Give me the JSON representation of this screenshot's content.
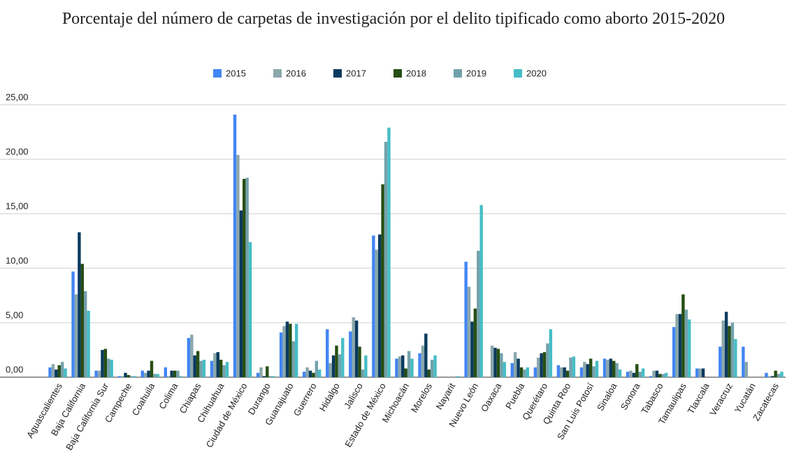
{
  "chart_data": {
    "type": "bar",
    "title": "Porcentaje del número de carpetas de investigación por el delito tipificado como aborto 2015-2020",
    "categories": [
      "Aguascalientes",
      "Baja California",
      "Baja California Sur",
      "Campeche",
      "Coahuila",
      "Colima",
      "Chiapas",
      "Chihuahua",
      "Ciudad de México",
      "Durango",
      "Guanajuato",
      "Guerrero",
      "Hidalgo",
      "Jalisco",
      "Estado de México",
      "Michoacán",
      "Morelos",
      "Nayarit",
      "Nuevo León",
      "Oaxaca",
      "Puebla",
      "Querétaro",
      "Quinta Roo",
      "San Luis Potosí",
      "Sinaloa",
      "Sonora",
      "Tabasco",
      "Tamaulipas",
      "Tlaxcala",
      "Veracruz",
      "Yucatán",
      "Zacatecas"
    ],
    "series": [
      {
        "name": "2015",
        "color": "#4285f4",
        "values": [
          0.9,
          9.7,
          0.6,
          0.1,
          0.6,
          0.9,
          3.6,
          1.5,
          24.1,
          0.4,
          4.1,
          0.5,
          4.4,
          4.2,
          13.0,
          1.7,
          2.2,
          0,
          10.6,
          0,
          1.3,
          0.9,
          1.1,
          0.9,
          1.7,
          0.5,
          0.1,
          4.6,
          0.8,
          2.8,
          2.8,
          0.4
        ]
      },
      {
        "name": "2016",
        "color": "#8aa7ab",
        "values": [
          1.2,
          7.6,
          0.6,
          0.1,
          0.4,
          0.1,
          3.9,
          2.2,
          20.4,
          0.9,
          4.7,
          0.9,
          1.3,
          5.5,
          11.7,
          1.9,
          2.9,
          0,
          8.3,
          2.9,
          2.3,
          1.8,
          0.9,
          1.4,
          1.6,
          0.6,
          0.6,
          5.8,
          0.8,
          5.2,
          1.4,
          0.1
        ]
      },
      {
        "name": "2017",
        "color": "#0b3a5e",
        "values": [
          0.7,
          13.3,
          2.5,
          0.4,
          0.6,
          0.6,
          2.0,
          2.3,
          15.3,
          0.1,
          5.1,
          0.6,
          2.0,
          5.2,
          13.1,
          2.0,
          4.0,
          0,
          5.1,
          2.7,
          1.7,
          2.2,
          0.9,
          1.2,
          1.7,
          0.4,
          0.6,
          5.8,
          0.8,
          6.0,
          0,
          0.1
        ]
      },
      {
        "name": "2018",
        "color": "#274e13",
        "values": [
          1.1,
          10.4,
          2.6,
          0.2,
          1.5,
          0.6,
          2.4,
          1.6,
          18.2,
          1.0,
          4.9,
          0.4,
          2.9,
          2.8,
          17.7,
          0.8,
          0.7,
          0,
          6.3,
          2.6,
          0.9,
          2.3,
          0.6,
          1.7,
          1.5,
          1.2,
          0.3,
          7.6,
          0,
          4.7,
          0,
          0.6
        ]
      },
      {
        "name": "2019",
        "color": "#73a1ab",
        "values": [
          1.4,
          7.9,
          1.7,
          0.1,
          0.3,
          0.6,
          1.5,
          1.1,
          18.3,
          0.1,
          3.3,
          1.5,
          2.1,
          0.7,
          21.6,
          2.4,
          1.6,
          0,
          11.6,
          2.2,
          0.7,
          3.1,
          1.8,
          1.0,
          1.3,
          0.5,
          0.3,
          6.2,
          0,
          5.0,
          0,
          0.3
        ]
      },
      {
        "name": "2020",
        "color": "#46bdc6",
        "values": [
          0.8,
          6.1,
          1.6,
          0.1,
          0.3,
          0.1,
          1.6,
          1.4,
          12.4,
          0.1,
          4.9,
          0.7,
          3.6,
          2.0,
          22.9,
          1.7,
          2.0,
          0.1,
          15.8,
          1.4,
          0.9,
          4.4,
          1.9,
          1.5,
          0.7,
          0.8,
          0.4,
          5.3,
          0,
          3.5,
          0,
          0.5
        ]
      }
    ],
    "ylim": [
      0,
      25
    ],
    "yticks": [
      {
        "value": 0,
        "label": "0,00"
      },
      {
        "value": 5,
        "label": "5,00"
      },
      {
        "value": 10,
        "label": "10,00"
      },
      {
        "value": 15,
        "label": "15,00"
      },
      {
        "value": 20,
        "label": "20,00"
      },
      {
        "value": 25,
        "label": "25,00"
      }
    ],
    "grid": true,
    "legend": "top"
  }
}
